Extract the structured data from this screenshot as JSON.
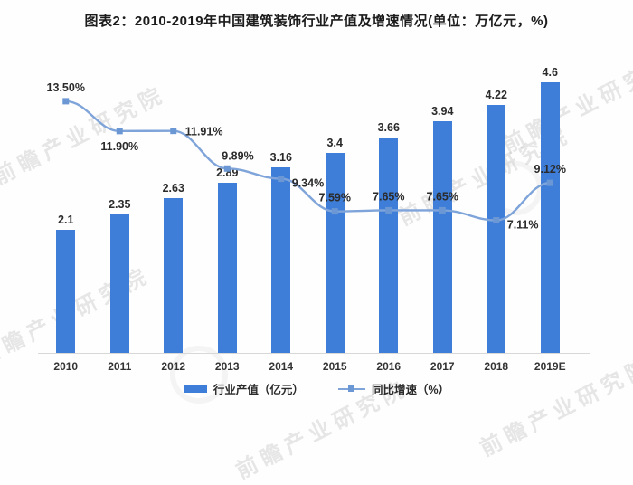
{
  "title": "图表2：2010-2019年中国建筑装饰行业产值及增速情况(单位：万亿元，%)",
  "watermark": {
    "text": "前瞻产业研究院"
  },
  "colors": {
    "bar": "#3e7ed9",
    "line": "#7fa4d9",
    "marker": "#6b98d4",
    "text": "#2b2b2b",
    "axis": "#d8d8d8"
  },
  "legend": [
    {
      "label": "行业产值（亿元）",
      "type": "bar"
    },
    {
      "label": "同比增速（%）",
      "type": "line"
    }
  ],
  "chart_data": {
    "type": "bar",
    "subtype": "bar+line-combo",
    "title": "图表2：2010-2019年中国建筑装饰行业产值及增速情况(单位：万亿元，%)",
    "categories": [
      "2010",
      "2011",
      "2012",
      "2013",
      "2014",
      "2015",
      "2016",
      "2017",
      "2018",
      "2019E"
    ],
    "series": [
      {
        "name": "行业产值（亿元）",
        "type": "bar",
        "values": [
          2.1,
          2.35,
          2.63,
          2.89,
          3.16,
          3.4,
          3.66,
          3.94,
          4.22,
          4.6
        ],
        "labels": [
          "2.1",
          "2.35",
          "2.63",
          "2.89",
          "3.16",
          "3.4",
          "3.66",
          "3.94",
          "4.22",
          "4.6"
        ]
      },
      {
        "name": "同比增速（%）",
        "type": "line",
        "values": [
          13.5,
          11.9,
          11.91,
          9.89,
          9.34,
          7.59,
          7.65,
          7.65,
          7.11,
          9.12
        ],
        "labels": [
          "13.50%",
          "11.90%",
          "11.91%",
          "9.89%",
          "9.34%",
          "7.59%",
          "7.65%",
          "7.65%",
          "7.11%",
          "9.12%"
        ],
        "label_pos": [
          "above",
          "below",
          "right",
          "above-left",
          "right-below",
          "above",
          "above",
          "above",
          "right-below",
          "above"
        ]
      }
    ],
    "xlabel": "",
    "ylabel": "",
    "ylim_bar": [
      0,
      5
    ],
    "ylim_line": [
      0,
      19
    ],
    "grid": false,
    "legend_position": "bottom"
  }
}
